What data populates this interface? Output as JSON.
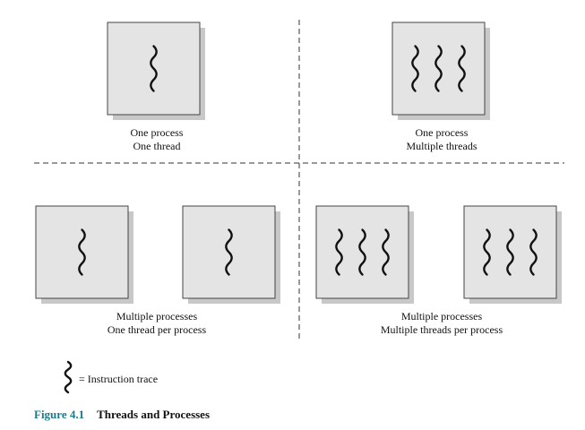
{
  "quadrants": [
    {
      "caption_line1": "One process",
      "caption_line2": "One thread",
      "processes": [
        {
          "threads": 1
        }
      ]
    },
    {
      "caption_line1": "One process",
      "caption_line2": "Multiple threads",
      "processes": [
        {
          "threads": 3
        }
      ]
    },
    {
      "caption_line1": "Multiple processes",
      "caption_line2": "One thread per process",
      "processes": [
        {
          "threads": 1
        },
        {
          "threads": 1
        }
      ]
    },
    {
      "caption_line1": "Multiple processes",
      "caption_line2": "Multiple threads per process",
      "processes": [
        {
          "threads": 3
        },
        {
          "threads": 3
        }
      ]
    }
  ],
  "legend": {
    "label": "= Instruction trace",
    "icon": "instruction-trace-icon"
  },
  "figure": {
    "number": "Figure 4.1",
    "title": "Threads and Processes"
  },
  "colors": {
    "box_fill": "#e4e4e4",
    "box_shadow": "#c8c8c8",
    "box_border": "#444444",
    "dash": "#333333",
    "caption_accent": "#1a7a8a"
  }
}
